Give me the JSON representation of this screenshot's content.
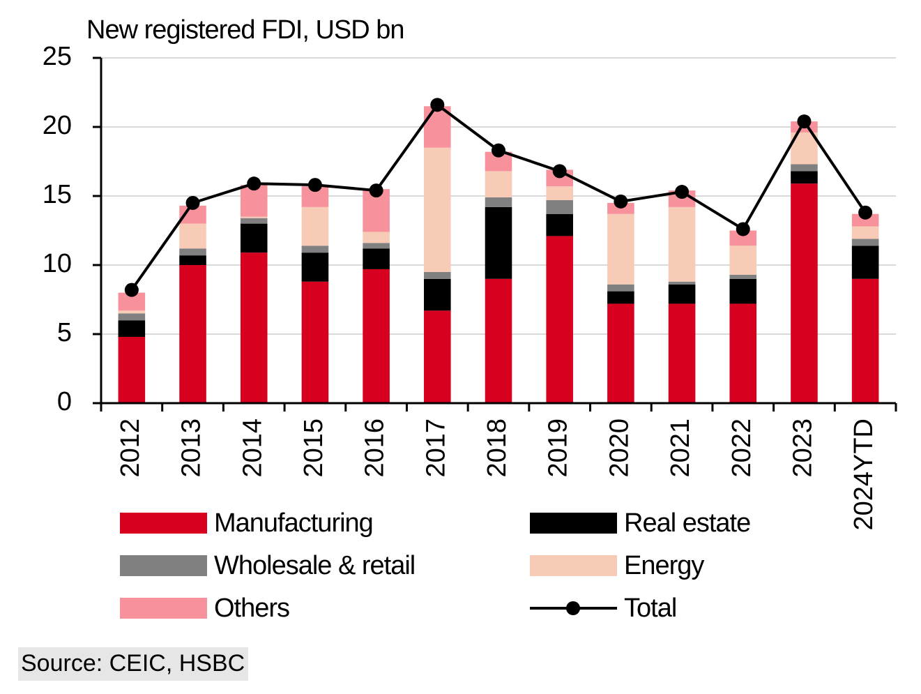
{
  "chart_data": {
    "type": "bar",
    "stacked": true,
    "title": "New registered FDI, USD bn",
    "source": "Source: CEIC, HSBC",
    "categories": [
      "2012",
      "2013",
      "2014",
      "2015",
      "2016",
      "2017",
      "2018",
      "2019",
      "2020",
      "2021",
      "2022",
      "2023",
      "2024YTD"
    ],
    "series": [
      {
        "name": "Manufacturing",
        "color": "#d7001f",
        "values": [
          4.8,
          10.0,
          10.9,
          8.8,
          9.7,
          6.7,
          9.0,
          12.1,
          7.2,
          7.2,
          7.2,
          15.9,
          9.0
        ]
      },
      {
        "name": "Real estate",
        "color": "#000000",
        "values": [
          1.2,
          0.7,
          2.1,
          2.1,
          1.5,
          2.3,
          5.2,
          1.6,
          0.9,
          1.4,
          1.8,
          0.9,
          2.4
        ]
      },
      {
        "name": "Wholesale & retail",
        "color": "#808080",
        "values": [
          0.5,
          0.5,
          0.4,
          0.5,
          0.4,
          0.5,
          0.7,
          1.0,
          0.5,
          0.2,
          0.3,
          0.5,
          0.5
        ]
      },
      {
        "name": "Energy",
        "color": "#f8cbb6",
        "values": [
          0.2,
          1.8,
          0.1,
          2.8,
          0.8,
          9.0,
          1.9,
          1.0,
          5.1,
          5.4,
          2.1,
          2.3,
          0.9
        ]
      },
      {
        "name": "Others",
        "color": "#f7919c",
        "values": [
          1.3,
          1.3,
          2.3,
          1.5,
          3.1,
          3.0,
          1.4,
          1.2,
          0.8,
          1.2,
          1.1,
          0.8,
          0.9
        ]
      },
      {
        "name": "Total",
        "color": "#000000",
        "type": "line",
        "values": [
          8.2,
          14.5,
          15.9,
          15.8,
          15.4,
          21.6,
          18.3,
          16.8,
          14.6,
          15.3,
          12.6,
          20.4,
          13.8
        ]
      }
    ],
    "ylim": [
      0,
      25
    ],
    "yticks": [
      0,
      5,
      10,
      15,
      20,
      25
    ],
    "grid": true
  }
}
